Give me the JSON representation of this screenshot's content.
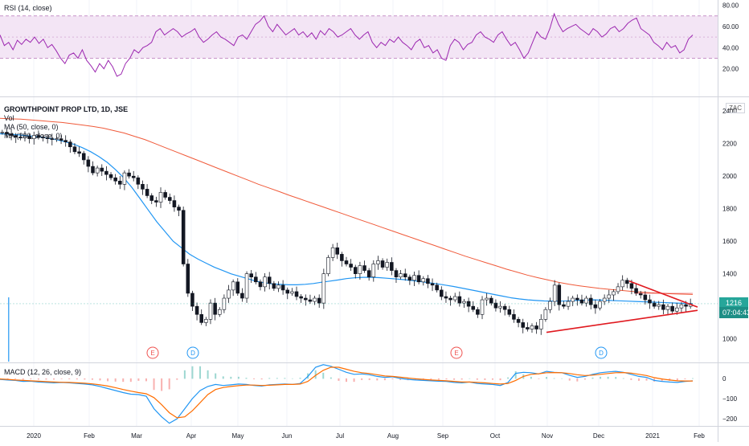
{
  "chart_data": [
    {
      "type": "line",
      "pane": "rsi",
      "legend": "RSI (14, close)",
      "y_ticks": [
        "80.00",
        "60.00",
        "40.00",
        "20.00"
      ],
      "ylim": [
        0,
        85
      ],
      "band": [
        30,
        70
      ],
      "colors": {
        "line": "#9c27b0",
        "band": "#f3e5f5",
        "band_edge": "#c792c9"
      },
      "values": [
        52,
        42,
        45,
        38,
        47,
        43,
        48,
        45,
        50,
        44,
        48,
        40,
        43,
        37,
        30,
        25,
        33,
        35,
        30,
        38,
        28,
        23,
        17,
        25,
        20,
        28,
        22,
        13,
        15,
        25,
        30,
        38,
        35,
        40,
        42,
        45,
        55,
        58,
        52,
        55,
        58,
        55,
        50,
        53,
        55,
        58,
        50,
        45,
        48,
        52,
        55,
        50,
        48,
        45,
        42,
        50,
        52,
        48,
        55,
        62,
        65,
        70,
        60,
        55,
        62,
        57,
        52,
        55,
        58,
        52,
        55,
        50,
        54,
        48,
        56,
        52,
        58,
        55,
        50,
        52,
        55,
        58,
        52,
        48,
        52,
        55,
        45,
        40,
        45,
        42,
        48,
        45,
        50,
        45,
        42,
        38,
        45,
        48,
        40,
        42,
        35,
        38,
        30,
        28,
        42,
        48,
        45,
        38,
        43,
        45,
        52,
        55,
        50,
        48,
        45,
        52,
        55,
        48,
        42,
        45,
        38,
        30,
        35,
        45,
        55,
        50,
        48,
        58,
        72,
        62,
        55,
        58,
        60,
        62,
        58,
        55,
        52,
        58,
        55,
        50,
        53,
        58,
        60,
        55,
        58,
        63,
        66,
        68,
        58,
        55,
        52,
        45,
        42,
        38,
        45,
        40,
        42,
        35,
        38,
        48,
        52
      ]
    },
    {
      "type": "line",
      "pane": "price",
      "title": "GROWTHPOINT PROP LTD, 1D, JSE",
      "legend": [
        "Vol",
        "MA (50, close, 0)",
        "MA (200, close, 0)"
      ],
      "currency": "ZAC",
      "y_ticks": [
        "2400",
        "2200",
        "2000",
        "1800",
        "1600",
        "1400",
        "1200",
        "1000"
      ],
      "ylim": [
        860,
        2480
      ],
      "last_price": "1216",
      "countdown": "07:04:43",
      "colors": {
        "up": "#131722",
        "down": "#131722",
        "ma50": "#2196f3",
        "ma200": "#f05a3a",
        "trend": "#e0191f",
        "last": "#26a69a",
        "countdown": "#1e8f86"
      },
      "close": [
        2270,
        2260,
        2250,
        2240,
        2235,
        2245,
        2230,
        2250,
        2240,
        2235,
        2230,
        2225,
        2230,
        2220,
        2210,
        2180,
        2150,
        2140,
        2100,
        2060,
        2020,
        2050,
        2030,
        2010,
        1990,
        1970,
        1950,
        2020,
        2000,
        1990,
        1950,
        1920,
        1880,
        1850,
        1840,
        1900,
        1870,
        1850,
        1810,
        1790,
        1460,
        1280,
        1200,
        1150,
        1100,
        1120,
        1220,
        1150,
        1180,
        1250,
        1300,
        1350,
        1280,
        1250,
        1400,
        1380,
        1350,
        1320,
        1380,
        1340,
        1310,
        1330,
        1300,
        1280,
        1290,
        1260,
        1250,
        1240,
        1230,
        1250,
        1220,
        1400,
        1500,
        1560,
        1520,
        1480,
        1460,
        1440,
        1400,
        1450,
        1420,
        1380,
        1460,
        1480,
        1440,
        1470,
        1420,
        1380,
        1400,
        1380,
        1360,
        1390,
        1350,
        1370,
        1340,
        1330,
        1300,
        1260,
        1250,
        1240,
        1260,
        1220,
        1230,
        1200,
        1180,
        1150,
        1240,
        1250,
        1220,
        1190,
        1200,
        1180,
        1150,
        1120,
        1100,
        1070,
        1060,
        1080,
        1060,
        1120,
        1180,
        1230,
        1330,
        1210,
        1200,
        1230,
        1250,
        1240,
        1220,
        1250,
        1210,
        1190,
        1230,
        1250,
        1270,
        1290,
        1320,
        1360,
        1340,
        1310,
        1280,
        1270,
        1240,
        1220,
        1200,
        1210,
        1180,
        1200,
        1170,
        1190,
        1210,
        1200,
        1216
      ],
      "ma50": [
        2260,
        2258,
        2255,
        2250,
        2245,
        2240,
        2232,
        2222,
        2210,
        2195,
        2175,
        2150,
        2120,
        2085,
        2040,
        1990,
        1930,
        1860,
        1790,
        1720,
        1660,
        1600,
        1560,
        1520,
        1490,
        1465,
        1440,
        1420,
        1400,
        1385,
        1370,
        1355,
        1345,
        1338,
        1335,
        1332,
        1332,
        1335,
        1340,
        1348,
        1355,
        1362,
        1370,
        1375,
        1378,
        1378,
        1376,
        1372,
        1368,
        1364,
        1358,
        1352,
        1345,
        1338,
        1330,
        1322,
        1312,
        1302,
        1292,
        1282,
        1272,
        1262,
        1252,
        1245,
        1240,
        1236,
        1233,
        1232,
        1232,
        1234,
        1236,
        1238,
        1240,
        1238,
        1236,
        1234,
        1232,
        1230,
        1228,
        1226,
        1224,
        1222,
        1220,
        1218,
        1216
      ],
      "ma200": [
        2355,
        2352,
        2350,
        2345,
        2340,
        2335,
        2330,
        2322,
        2314,
        2305,
        2295,
        2280,
        2265,
        2245,
        2225,
        2200,
        2175,
        2150,
        2125,
        2100,
        2075,
        2050,
        2025,
        2000,
        1975,
        1950,
        1928,
        1905,
        1882,
        1860,
        1838,
        1816,
        1794,
        1772,
        1750,
        1728,
        1706,
        1684,
        1662,
        1640,
        1618,
        1596,
        1574,
        1552,
        1530,
        1508,
        1488,
        1468,
        1448,
        1428,
        1410,
        1392,
        1376,
        1362,
        1348,
        1336,
        1326,
        1318,
        1310,
        1304,
        1298,
        1292,
        1287,
        1283,
        1280,
        1277,
        1275,
        1273
      ],
      "events": [
        {
          "label": "E",
          "color": "#ef5350"
        },
        {
          "label": "D",
          "color": "#2196f3"
        },
        {
          "label": "E",
          "color": "#ef5350"
        },
        {
          "label": "D",
          "color": "#2196f3"
        }
      ]
    },
    {
      "type": "line",
      "pane": "macd",
      "legend": "MACD (12, 26, close, 9)",
      "y_ticks": [
        "0",
        "−100",
        "−200"
      ],
      "ylim": [
        -235,
        75
      ],
      "colors": {
        "macd": "#2196f3",
        "signal": "#ff6d00",
        "hist": "#26a69a"
      },
      "macd": [
        -5,
        -8,
        -10,
        -15,
        -14,
        -18,
        -20,
        -22,
        -20,
        -22,
        -25,
        -28,
        -32,
        -40,
        -50,
        -60,
        -70,
        -78,
        -80,
        -88,
        -150,
        -190,
        -222,
        -200,
        -150,
        -100,
        -60,
        -40,
        -30,
        -35,
        -32,
        -28,
        -30,
        -35,
        -38,
        -32,
        -30,
        -28,
        -30,
        -25,
        10,
        55,
        68,
        60,
        45,
        30,
        20,
        22,
        18,
        10,
        5,
        8,
        0,
        -5,
        -8,
        -10,
        -12,
        -14,
        -15,
        -20,
        -22,
        -18,
        -25,
        -28,
        -30,
        -35,
        -20,
        25,
        30,
        28,
        22,
        35,
        30,
        28,
        15,
        5,
        10,
        20,
        28,
        32,
        35,
        30,
        20,
        10,
        5,
        -10,
        -15,
        -18,
        -20,
        -15,
        -12
      ],
      "signal": [
        -3,
        -5,
        -8,
        -10,
        -12,
        -14,
        -16,
        -18,
        -19,
        -20,
        -22,
        -24,
        -27,
        -32,
        -38,
        -46,
        -55,
        -63,
        -70,
        -76,
        -95,
        -130,
        -170,
        -195,
        -190,
        -160,
        -120,
        -80,
        -55,
        -45,
        -40,
        -36,
        -33,
        -33,
        -35,
        -34,
        -32,
        -30,
        -30,
        -28,
        -15,
        15,
        40,
        55,
        55,
        45,
        35,
        28,
        24,
        18,
        12,
        10,
        6,
        2,
        -2,
        -5,
        -8,
        -10,
        -12,
        -15,
        -18,
        -18,
        -20,
        -22,
        -25,
        -28,
        -25,
        -10,
        10,
        20,
        23,
        28,
        29,
        28,
        24,
        18,
        14,
        16,
        20,
        24,
        28,
        29,
        26,
        20,
        14,
        4,
        -3,
        -8,
        -12,
        -13,
        -13
      ]
    }
  ],
  "x_axis": {
    "labels": [
      "2020",
      "Feb",
      "Mar",
      "Apr",
      "May",
      "Jun",
      "Jul",
      "Aug",
      "Sep",
      "Oct",
      "Nov",
      "Dec",
      "2021",
      "Feb"
    ]
  }
}
